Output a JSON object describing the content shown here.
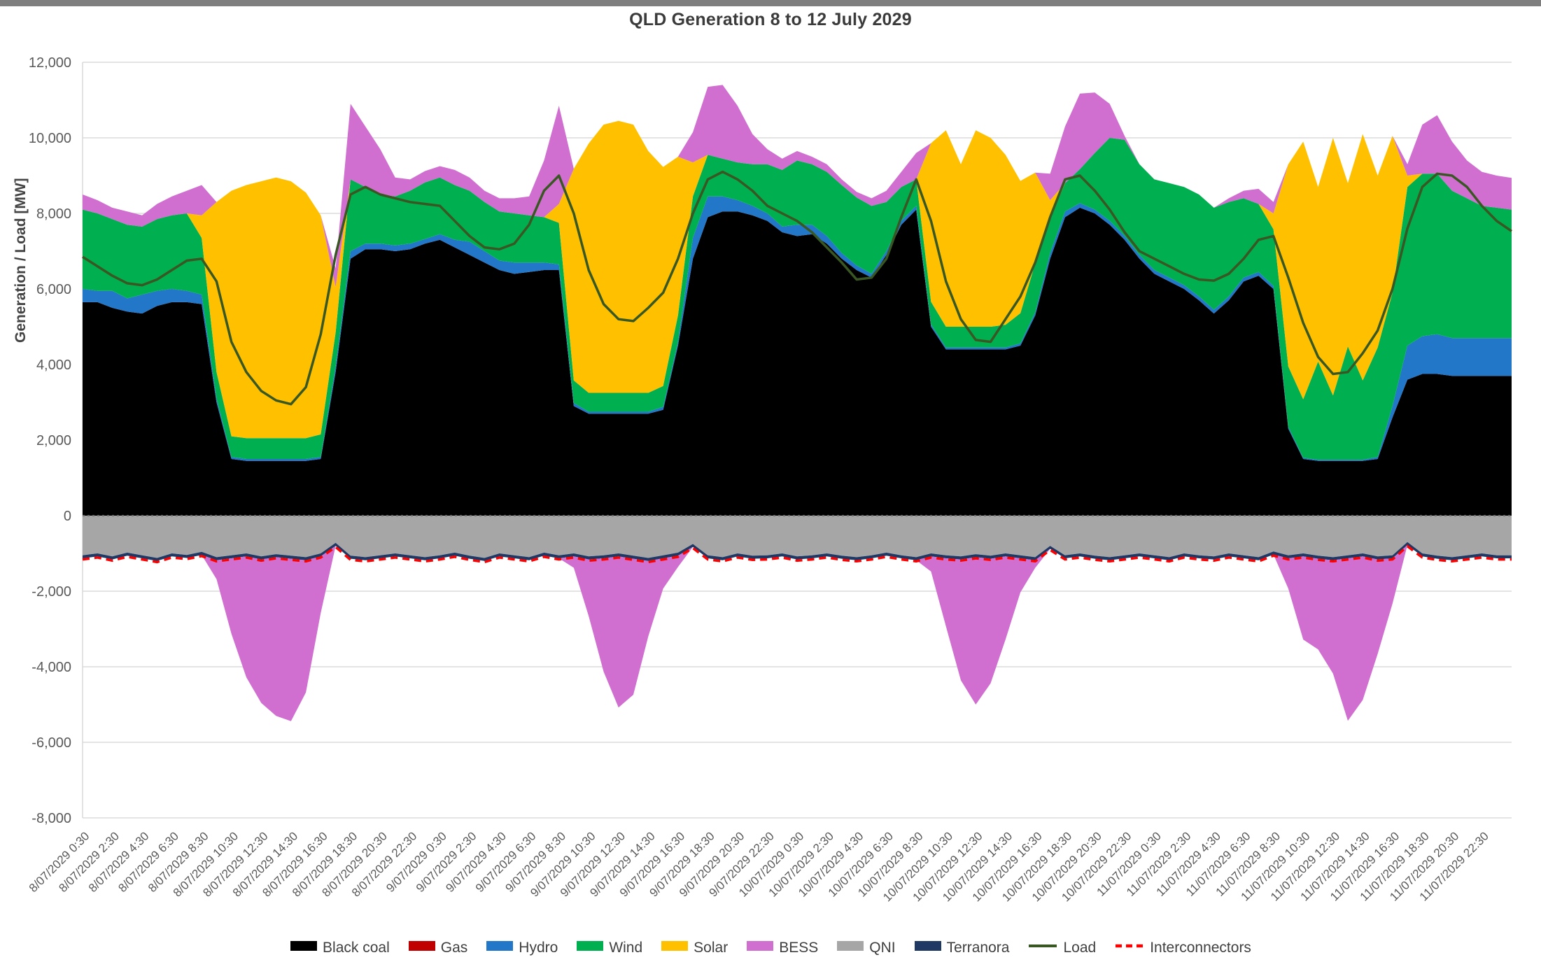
{
  "title": "QLD Generation 8 to 12 July 2029",
  "y_axis": {
    "label": "Generation / Load [MW]",
    "min": -8000,
    "max": 12000,
    "tick_step": 2000,
    "tick_labels": [
      "12,000",
      "10,000",
      "8,000",
      "6,000",
      "4,000",
      "2,000",
      "0",
      "-2,000",
      "-4,000",
      "-6,000",
      "-8,000"
    ]
  },
  "x_axis": {
    "tick_labels": [
      "8/07/2029 0:30",
      "8/07/2029 2:30",
      "8/07/2029 4:30",
      "8/07/2029 6:30",
      "8/07/2029 8:30",
      "8/07/2029 10:30",
      "8/07/2029 12:30",
      "8/07/2029 14:30",
      "8/07/2029 16:30",
      "8/07/2029 18:30",
      "8/07/2029 20:30",
      "8/07/2029 22:30",
      "9/07/2029 0:30",
      "9/07/2029 2:30",
      "9/07/2029 4:30",
      "9/07/2029 6:30",
      "9/07/2029 8:30",
      "9/07/2029 10:30",
      "9/07/2029 12:30",
      "9/07/2029 14:30",
      "9/07/2029 16:30",
      "9/07/2029 18:30",
      "9/07/2029 20:30",
      "9/07/2029 22:30",
      "10/07/2029 0:30",
      "10/07/2029 2:30",
      "10/07/2029 4:30",
      "10/07/2029 6:30",
      "10/07/2029 8:30",
      "10/07/2029 10:30",
      "10/07/2029 12:30",
      "10/07/2029 14:30",
      "10/07/2029 16:30",
      "10/07/2029 18:30",
      "10/07/2029 20:30",
      "10/07/2029 22:30",
      "11/07/2029 0:30",
      "11/07/2029 2:30",
      "11/07/2029 4:30",
      "11/07/2029 6:30",
      "11/07/2029 8:30",
      "11/07/2029 10:30",
      "11/07/2029 12:30",
      "11/07/2029 14:30",
      "11/07/2029 16:30",
      "11/07/2029 18:30",
      "11/07/2029 20:30",
      "11/07/2029 22:30"
    ]
  },
  "legend": [
    {
      "label": "Black coal",
      "color": "#000000",
      "swatch": "area"
    },
    {
      "label": "Gas",
      "color": "#C00000",
      "swatch": "area"
    },
    {
      "label": "Hydro",
      "color": "#2277C8",
      "swatch": "area"
    },
    {
      "label": "Wind",
      "color": "#00B050",
      "swatch": "area"
    },
    {
      "label": "Solar",
      "color": "#FFC000",
      "swatch": "area"
    },
    {
      "label": "BESS",
      "color": "#D16FD1",
      "swatch": "area"
    },
    {
      "label": "QNI",
      "color": "#A6A6A6",
      "swatch": "area"
    },
    {
      "label": "Terranora",
      "color": "#1F3864",
      "swatch": "area"
    },
    {
      "label": "Load",
      "color": "#385723",
      "swatch": "line"
    },
    {
      "label": "Interconnectors",
      "color": "#FF0000",
      "swatch": "dashed"
    }
  ],
  "chart_data": {
    "type": "area",
    "subtype": "stacked-area-with-lines",
    "title": "QLD Generation 8 to 12 July 2029",
    "xlabel": "",
    "ylabel": "Generation / Load [MW]",
    "ylim": [
      -8000,
      12000
    ],
    "x_unit": "hours since 8/07/2029 00:00, hourly samples 0..96",
    "grid": true,
    "legend_position": "bottom",
    "stack_positive_order": [
      "black_coal",
      "gas",
      "hydro",
      "wind",
      "solar",
      "bess"
    ],
    "stack_negative_order": [
      "qni",
      "terranora",
      "bess"
    ],
    "series": {
      "black_coal": {
        "label": "Black coal",
        "color": "#000000",
        "values": [
          5650,
          5650,
          5500,
          5400,
          5350,
          5550,
          5650,
          5650,
          5600,
          3000,
          1500,
          1450,
          1450,
          1450,
          1450,
          1450,
          1500,
          3800,
          6800,
          7050,
          7050,
          7000,
          7050,
          7200,
          7300,
          7100,
          6900,
          6700,
          6500,
          6400,
          6450,
          6500,
          6500,
          2900,
          2700,
          2700,
          2700,
          2700,
          2700,
          2800,
          4500,
          6800,
          7900,
          8050,
          8050,
          7950,
          7800,
          7500,
          7400,
          7450,
          7200,
          6800,
          6500,
          6300,
          6900,
          7700,
          8100,
          5000,
          4400,
          4400,
          4400,
          4400,
          4400,
          4500,
          5300,
          6800,
          7900,
          8150,
          8000,
          7700,
          7300,
          6800,
          6400,
          6200,
          6000,
          5700,
          5350,
          5700,
          6200,
          6350,
          6000,
          2300,
          1500,
          1450,
          1450,
          1450,
          1450,
          1500,
          2600,
          3600,
          3750,
          3750,
          3700,
          3700,
          3700,
          3700,
          3700
        ]
      },
      "gas": {
        "label": "Gas",
        "color": "#C00000",
        "values": [
          0,
          0,
          0,
          0,
          0,
          0,
          0,
          0,
          0,
          0,
          0,
          0,
          0,
          0,
          0,
          0,
          0,
          0,
          0,
          0,
          0,
          0,
          0,
          0,
          0,
          0,
          0,
          0,
          0,
          0,
          0,
          0,
          0,
          0,
          0,
          0,
          0,
          0,
          0,
          0,
          0,
          0,
          0,
          0,
          0,
          0,
          0,
          0,
          0,
          0,
          0,
          0,
          0,
          0,
          0,
          0,
          0,
          0,
          0,
          0,
          0,
          0,
          0,
          0,
          0,
          0,
          0,
          0,
          0,
          0,
          0,
          0,
          0,
          0,
          0,
          0,
          0,
          0,
          0,
          0,
          0,
          0,
          0,
          0,
          0,
          0,
          0,
          0,
          0,
          0,
          0,
          0,
          0,
          0,
          0,
          0,
          0
        ]
      },
      "hydro": {
        "label": "Hydro",
        "color": "#2277C8",
        "values": [
          350,
          300,
          450,
          350,
          500,
          400,
          350,
          300,
          250,
          100,
          50,
          50,
          50,
          50,
          50,
          50,
          50,
          150,
          200,
          150,
          150,
          150,
          150,
          120,
          150,
          200,
          350,
          300,
          250,
          300,
          250,
          200,
          150,
          80,
          50,
          50,
          50,
          50,
          50,
          80,
          100,
          550,
          550,
          400,
          300,
          250,
          200,
          150,
          300,
          250,
          200,
          150,
          120,
          100,
          100,
          100,
          100,
          60,
          50,
          50,
          50,
          50,
          50,
          60,
          80,
          150,
          150,
          120,
          100,
          100,
          100,
          100,
          100,
          100,
          100,
          100,
          100,
          100,
          100,
          100,
          80,
          50,
          30,
          30,
          30,
          30,
          30,
          50,
          300,
          900,
          1000,
          1050,
          1000,
          1000,
          1000,
          1000,
          1000
        ]
      },
      "wind": {
        "label": "Wind",
        "color": "#00B050",
        "values": [
          2100,
          2050,
          1900,
          1950,
          1800,
          1900,
          1950,
          2050,
          1500,
          700,
          550,
          550,
          550,
          550,
          550,
          550,
          600,
          900,
          1900,
          1500,
          1300,
          1300,
          1400,
          1500,
          1500,
          1450,
          1350,
          1300,
          1300,
          1300,
          1250,
          1200,
          1100,
          600,
          500,
          500,
          500,
          500,
          500,
          550,
          700,
          1100,
          1100,
          1000,
          1000,
          1100,
          1300,
          1500,
          1700,
          1600,
          1700,
          1800,
          1800,
          1800,
          1300,
          900,
          700,
          600,
          550,
          550,
          550,
          550,
          600,
          800,
          1300,
          900,
          750,
          900,
          1500,
          2200,
          2550,
          2400,
          2400,
          2500,
          2600,
          2700,
          2700,
          2500,
          2100,
          1800,
          1500,
          1600,
          1550,
          2600,
          1700,
          3000,
          2100,
          2900,
          3000,
          4200,
          4300,
          4250,
          3900,
          3700,
          3500,
          3450,
          3400
        ]
      },
      "solar": {
        "label": "Solar",
        "color": "#FFC000",
        "values": [
          0,
          0,
          0,
          0,
          0,
          0,
          0,
          0,
          600,
          4500,
          6500,
          6700,
          6800,
          6900,
          6800,
          6500,
          5800,
          1200,
          0,
          0,
          0,
          0,
          0,
          0,
          0,
          0,
          0,
          0,
          0,
          0,
          0,
          0,
          500,
          5600,
          6600,
          7100,
          7200,
          7100,
          6400,
          5800,
          4200,
          900,
          0,
          0,
          0,
          0,
          0,
          0,
          0,
          0,
          0,
          0,
          0,
          0,
          0,
          0,
          0,
          4200,
          5200,
          4300,
          5200,
          5000,
          4500,
          3500,
          2400,
          500,
          0,
          0,
          0,
          0,
          0,
          0,
          0,
          0,
          0,
          0,
          0,
          0,
          0,
          0,
          420,
          5350,
          6820,
          4620,
          6820,
          4320,
          6520,
          4550,
          4150,
          300,
          0,
          0,
          0,
          0,
          0,
          0,
          0
        ]
      },
      "bess": {
        "label": "BESS",
        "color": "#D16FD1",
        "values": [
          400,
          350,
          300,
          350,
          300,
          400,
          500,
          600,
          800,
          -500,
          -2000,
          -3200,
          -3800,
          -4200,
          -4300,
          -3500,
          -1500,
          500,
          2000,
          1600,
          1200,
          500,
          300,
          300,
          300,
          400,
          350,
          300,
          350,
          400,
          500,
          1500,
          2600,
          -300,
          -1500,
          -3000,
          -4000,
          -3600,
          -2000,
          -800,
          -300,
          800,
          1800,
          1950,
          1500,
          800,
          400,
          300,
          250,
          200,
          200,
          150,
          150,
          200,
          300,
          400,
          700,
          -400,
          -1800,
          -3200,
          -3900,
          -3300,
          -2200,
          -900,
          -200,
          700,
          1500,
          2000,
          1600,
          900,
          100,
          0,
          0,
          0,
          0,
          0,
          0,
          100,
          200,
          400,
          300,
          -800,
          -2200,
          -2400,
          -3000,
          -4300,
          -3800,
          -2500,
          -1200,
          300,
          1300,
          1550,
          1300,
          1000,
          900,
          850,
          840
        ]
      },
      "qni": {
        "label": "QNI",
        "color": "#A6A6A6",
        "values": [
          -1050,
          -1000,
          -1080,
          -980,
          -1050,
          -1120,
          -1000,
          -1040,
          -960,
          -1100,
          -1050,
          -1000,
          -1080,
          -1020,
          -1060,
          -1100,
          -1000,
          -720,
          -1060,
          -1100,
          -1050,
          -1000,
          -1050,
          -1100,
          -1050,
          -980,
          -1060,
          -1120,
          -1000,
          -1050,
          -1100,
          -980,
          -1050,
          -1000,
          -1080,
          -1050,
          -1000,
          -1060,
          -1120,
          -1050,
          -980,
          -750,
          -1050,
          -1100,
          -1000,
          -1060,
          -1050,
          -1000,
          -1080,
          -1050,
          -1000,
          -1060,
          -1100,
          -1050,
          -980,
          -1050,
          -1100,
          -1000,
          -1050,
          -1080,
          -1020,
          -1060,
          -1000,
          -1050,
          -1100,
          -800,
          -1050,
          -1000,
          -1060,
          -1100,
          -1050,
          -1000,
          -1050,
          -1100,
          -1000,
          -1050,
          -1080,
          -1000,
          -1050,
          -1100,
          -950,
          -1050,
          -1000,
          -1060,
          -1100,
          -1050,
          -1000,
          -1080,
          -1050,
          -700,
          -1000,
          -1060,
          -1100,
          -1050,
          -1000,
          -1050,
          -1050
        ]
      },
      "terranora": {
        "label": "Terranora",
        "color": "#1F3864",
        "values": [
          -80,
          -80,
          -80,
          -80,
          -80,
          -80,
          -80,
          -80,
          -80,
          -80,
          -80,
          -80,
          -80,
          -80,
          -80,
          -80,
          -80,
          -80,
          -80,
          -80,
          -80,
          -80,
          -80,
          -80,
          -80,
          -80,
          -80,
          -80,
          -80,
          -80,
          -80,
          -80,
          -80,
          -80,
          -80,
          -80,
          -80,
          -80,
          -80,
          -80,
          -80,
          -80,
          -80,
          -80,
          -80,
          -80,
          -80,
          -80,
          -80,
          -80,
          -80,
          -80,
          -80,
          -80,
          -80,
          -80,
          -80,
          -80,
          -80,
          -80,
          -80,
          -80,
          -80,
          -80,
          -80,
          -80,
          -80,
          -80,
          -80,
          -80,
          -80,
          -80,
          -80,
          -80,
          -80,
          -80,
          -80,
          -80,
          -80,
          -80,
          -80,
          -80,
          -80,
          -80,
          -80,
          -80,
          -80,
          -80,
          -80,
          -80,
          -80,
          -80,
          -80,
          -80,
          -80,
          -80,
          -80
        ]
      }
    },
    "lines": {
      "load": {
        "label": "Load",
        "color": "#385723",
        "style": "solid",
        "values": [
          6850,
          6600,
          6350,
          6150,
          6100,
          6250,
          6500,
          6750,
          6800,
          6200,
          4600,
          3800,
          3300,
          3050,
          2950,
          3400,
          4800,
          6900,
          8500,
          8700,
          8500,
          8400,
          8300,
          8250,
          8200,
          7800,
          7400,
          7100,
          7050,
          7200,
          7700,
          8600,
          9000,
          8000,
          6500,
          5600,
          5200,
          5150,
          5500,
          5900,
          6800,
          8000,
          8900,
          9100,
          8900,
          8600,
          8200,
          8000,
          7800,
          7500,
          7100,
          6700,
          6250,
          6300,
          6800,
          7900,
          8900,
          7800,
          6200,
          5200,
          4650,
          4600,
          5200,
          5800,
          6700,
          7900,
          8900,
          9000,
          8600,
          8100,
          7500,
          7000,
          6800,
          6600,
          6400,
          6250,
          6220,
          6400,
          6800,
          7300,
          7400,
          6300,
          5100,
          4200,
          3750,
          3800,
          4300,
          4900,
          6000,
          7600,
          8700,
          9050,
          9000,
          8700,
          8200,
          7800,
          7530
        ]
      },
      "interconnectors": {
        "label": "Interconnectors",
        "color": "#FF0000",
        "style": "dashed",
        "values": [
          -1160,
          -1110,
          -1190,
          -1090,
          -1160,
          -1230,
          -1110,
          -1150,
          -1070,
          -1210,
          -1160,
          -1110,
          -1190,
          -1130,
          -1170,
          -1210,
          -1110,
          -830,
          -1170,
          -1210,
          -1160,
          -1110,
          -1160,
          -1210,
          -1160,
          -1090,
          -1170,
          -1230,
          -1110,
          -1160,
          -1210,
          -1090,
          -1160,
          -1110,
          -1190,
          -1160,
          -1110,
          -1170,
          -1230,
          -1160,
          -1090,
          -860,
          -1160,
          -1210,
          -1110,
          -1170,
          -1160,
          -1110,
          -1190,
          -1160,
          -1110,
          -1170,
          -1210,
          -1160,
          -1090,
          -1160,
          -1210,
          -1110,
          -1160,
          -1190,
          -1130,
          -1170,
          -1110,
          -1160,
          -1210,
          -910,
          -1160,
          -1110,
          -1170,
          -1210,
          -1160,
          -1110,
          -1160,
          -1210,
          -1110,
          -1160,
          -1190,
          -1110,
          -1160,
          -1210,
          -1060,
          -1160,
          -1110,
          -1170,
          -1210,
          -1160,
          -1110,
          -1190,
          -1160,
          -810,
          -1110,
          -1170,
          -1210,
          -1160,
          -1110,
          -1160,
          -1160
        ]
      }
    }
  }
}
